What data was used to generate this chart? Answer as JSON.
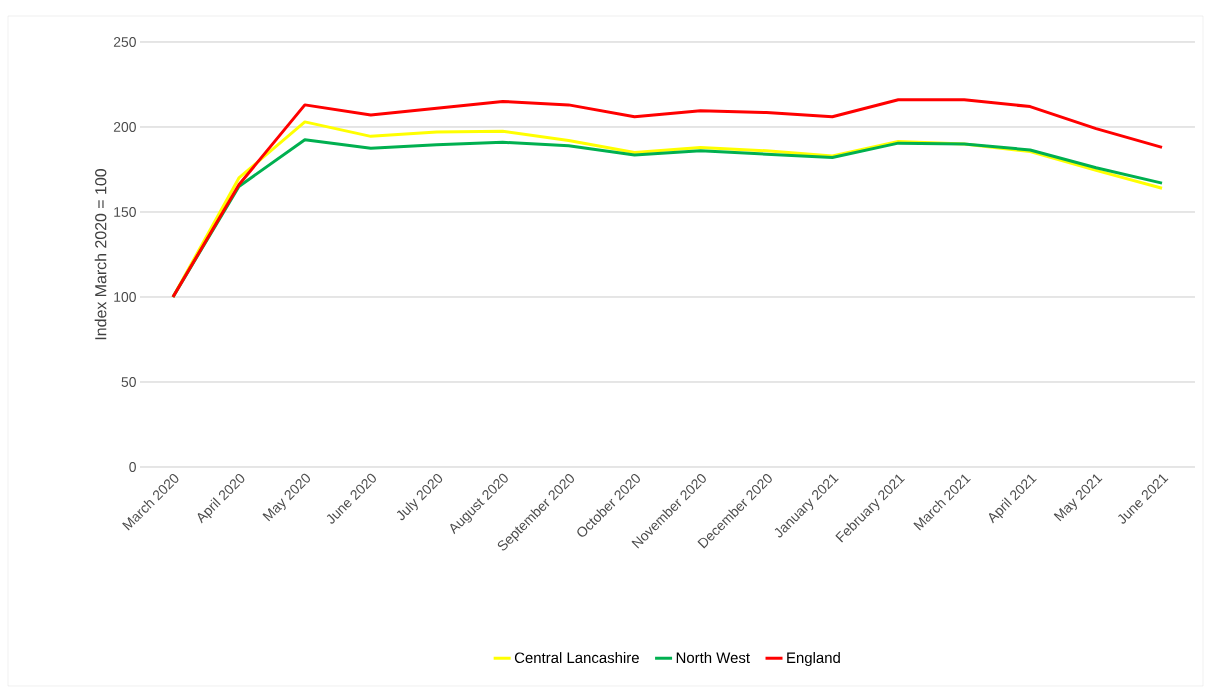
{
  "chart_data": {
    "type": "line",
    "ylabel": "Index March 2020 = 100",
    "categories": [
      "March 2020",
      "April 2020",
      "May 2020",
      "June 2020",
      "July 2020",
      "August 2020",
      "September 2020",
      "October 2020",
      "November 2020",
      "December 2020",
      "January 2021",
      "February 2021",
      "March 2021",
      "April 2021",
      "May 2021",
      "June 2021"
    ],
    "series": [
      {
        "name": "Central Lancashire",
        "color": "#ffff00",
        "values": [
          100,
          170,
          203,
          194.5,
          197,
          197.5,
          192,
          185,
          188,
          186,
          183,
          191.5,
          190,
          185.5,
          174.5,
          164
        ]
      },
      {
        "name": "North West",
        "color": "#00b050",
        "values": [
          100,
          165,
          192.5,
          187.5,
          189.5,
          191,
          189,
          183.5,
          186,
          184,
          182,
          190.5,
          190,
          186.5,
          176,
          167
        ]
      },
      {
        "name": "England",
        "color": "#ff0000",
        "values": [
          100,
          166,
          213,
          207,
          211,
          215,
          213,
          206,
          209.5,
          208.5,
          206,
          216,
          216,
          212,
          199,
          188
        ]
      }
    ],
    "ylim": [
      0,
      250
    ],
    "yticks": [
      0,
      50,
      100,
      150,
      200,
      250
    ],
    "grid": "y",
    "legend": "bottom",
    "marker": "none",
    "line_style": "solid"
  }
}
